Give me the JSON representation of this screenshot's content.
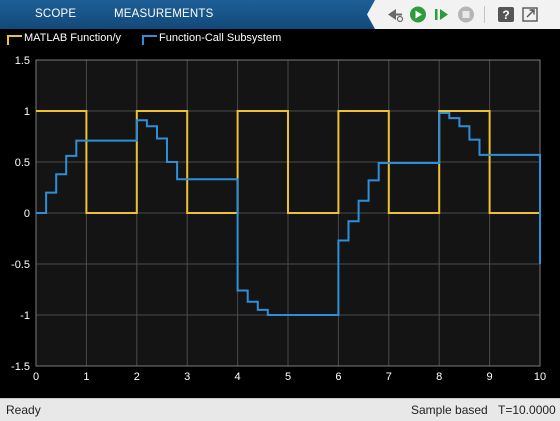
{
  "toolstrip": {
    "tabs": [
      "SCOPE",
      "MEASUREMENTS"
    ],
    "tools": [
      {
        "name": "step-back-icon"
      },
      {
        "name": "run-icon"
      },
      {
        "name": "step-forward-icon"
      },
      {
        "name": "stop-icon"
      },
      {
        "name": "help-icon"
      },
      {
        "name": "undock-icon"
      }
    ]
  },
  "colors": {
    "series1": "#edc12f",
    "series2": "#2e8fd9",
    "plot_bg": "#141414",
    "grid": "#4a4a4a",
    "axis_text": "#ffffff"
  },
  "chart_data": {
    "type": "line",
    "step": true,
    "xlim": [
      0,
      10
    ],
    "ylim": [
      -1.5,
      1.5
    ],
    "xticks": [
      "0",
      "1",
      "2",
      "3",
      "4",
      "5",
      "6",
      "7",
      "8",
      "9",
      "10"
    ],
    "yticks": [
      "1.5",
      "1",
      "0.5",
      "0",
      "-0.5",
      "-1",
      "-1.5"
    ],
    "grid": true,
    "legend": "top-left",
    "series": [
      {
        "name": "MATLAB Function/y",
        "color": "#edc12f",
        "x": [
          0,
          1,
          1,
          2,
          2,
          3,
          3,
          4,
          4,
          5,
          5,
          6,
          6,
          7,
          7,
          8,
          8,
          9,
          9,
          10
        ],
        "y": [
          1,
          1,
          0,
          0,
          1,
          1,
          0,
          0,
          1,
          1,
          0,
          0,
          1,
          1,
          0,
          0,
          1,
          1,
          0,
          0
        ]
      },
      {
        "name": "Function-Call Subsystem",
        "color": "#2e8fd9",
        "x": [
          0,
          0.2,
          0.2,
          0.4,
          0.4,
          0.6,
          0.6,
          0.8,
          0.8,
          2,
          2,
          2.2,
          2.2,
          2.4,
          2.4,
          2.6,
          2.6,
          2.8,
          2.8,
          4,
          4,
          4.2,
          4.2,
          4.4,
          4.4,
          4.6,
          4.6,
          4.8,
          4.8,
          6,
          6,
          6.2,
          6.2,
          6.4,
          6.4,
          6.6,
          6.6,
          6.8,
          6.8,
          8,
          8,
          8.2,
          8.2,
          8.4,
          8.4,
          8.6,
          8.6,
          8.8,
          8.8,
          10,
          10
        ],
        "y": [
          0,
          0,
          0.2,
          0.2,
          0.38,
          0.38,
          0.56,
          0.56,
          0.71,
          0.71,
          0.91,
          0.91,
          0.85,
          0.85,
          0.73,
          0.73,
          0.5,
          0.5,
          0.33,
          0.33,
          -0.76,
          -0.76,
          -0.87,
          -0.87,
          -0.95,
          -0.95,
          -1,
          -1,
          -1,
          -1,
          -0.27,
          -0.27,
          -0.08,
          -0.08,
          0.12,
          0.12,
          0.32,
          0.32,
          0.49,
          0.49,
          0.98,
          0.98,
          0.93,
          0.93,
          0.85,
          0.85,
          0.72,
          0.72,
          0.57,
          0.57,
          -0.5
        ]
      }
    ]
  },
  "status": {
    "ready": "Ready",
    "sample": "Sample based",
    "time": "T=10.0000"
  }
}
